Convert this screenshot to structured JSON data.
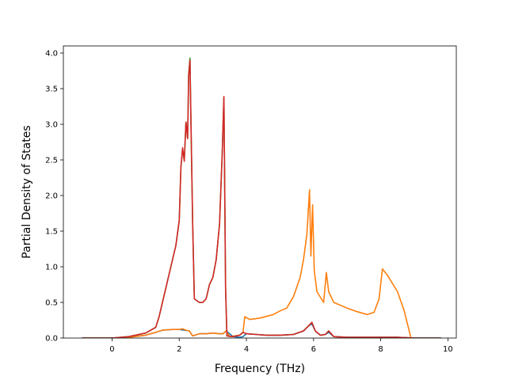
{
  "chart_data": {
    "type": "line",
    "title": "",
    "xlabel": "Frequency (THz)",
    "ylabel": "Partial Density of States",
    "xlim": [
      -1.45,
      10.25
    ],
    "ylim": [
      0.0,
      4.1
    ],
    "x_ticks": [
      0,
      2,
      4,
      6,
      8,
      10
    ],
    "x_tick_labels": [
      "0",
      "2",
      "4",
      "6",
      "8",
      "10"
    ],
    "y_ticks": [
      0.0,
      0.5,
      1.0,
      1.5,
      2.0,
      2.5,
      3.0,
      3.5,
      4.0
    ],
    "y_tick_labels": [
      "0.0",
      "0.5",
      "1.0",
      "1.5",
      "2.0",
      "2.5",
      "3.0",
      "3.5",
      "4.0"
    ],
    "grid": false,
    "legend": "none",
    "series": [
      {
        "color": "#1f77b4",
        "x": [
          -0.9,
          0.0,
          0.5,
          1.0,
          1.3,
          1.5,
          1.8,
          2.0,
          2.15,
          2.3,
          2.4,
          2.6,
          2.8,
          3.0,
          3.2,
          3.3,
          3.4,
          3.6,
          3.8,
          3.9,
          4.0,
          4.3,
          4.6,
          5.0,
          5.4,
          5.7,
          5.85,
          5.95,
          6.05,
          6.2,
          6.35,
          6.45,
          6.6,
          7.0,
          7.5,
          8.0,
          8.5,
          9.0,
          9.8
        ],
        "y": [
          0.0,
          0.0,
          0.01,
          0.04,
          0.08,
          0.11,
          0.12,
          0.12,
          0.11,
          0.1,
          0.03,
          0.06,
          0.06,
          0.07,
          0.06,
          0.06,
          0.1,
          0.02,
          0.01,
          0.02,
          0.06,
          0.05,
          0.04,
          0.04,
          0.05,
          0.1,
          0.17,
          0.2,
          0.1,
          0.04,
          0.05,
          0.08,
          0.02,
          0.01,
          0.01,
          0.01,
          0.01,
          0.0,
          0.0
        ]
      },
      {
        "color": "#ff7f0e",
        "x": [
          -0.9,
          0.0,
          0.5,
          1.0,
          1.3,
          1.5,
          1.8,
          2.0,
          2.1,
          2.2,
          2.3,
          2.4,
          2.6,
          2.8,
          3.0,
          3.2,
          3.3,
          3.4,
          3.5,
          3.8,
          3.9,
          3.95,
          4.1,
          4.4,
          4.8,
          5.0,
          5.2,
          5.4,
          5.6,
          5.7,
          5.8,
          5.88,
          5.92,
          5.97,
          6.02,
          6.1,
          6.3,
          6.38,
          6.45,
          6.6,
          7.0,
          7.3,
          7.6,
          7.8,
          7.95,
          8.05,
          8.2,
          8.5,
          8.7,
          8.9
        ],
        "y": [
          0.0,
          0.0,
          0.01,
          0.04,
          0.08,
          0.11,
          0.12,
          0.12,
          0.13,
          0.11,
          0.1,
          0.03,
          0.06,
          0.06,
          0.07,
          0.06,
          0.06,
          0.1,
          0.02,
          0.04,
          0.08,
          0.3,
          0.26,
          0.28,
          0.33,
          0.38,
          0.42,
          0.58,
          0.85,
          1.1,
          1.45,
          2.08,
          1.15,
          1.87,
          0.95,
          0.65,
          0.5,
          0.92,
          0.65,
          0.5,
          0.42,
          0.37,
          0.33,
          0.36,
          0.55,
          0.97,
          0.88,
          0.65,
          0.38,
          0.0
        ]
      },
      {
        "color": "#2ca02c",
        "x": [
          -0.9,
          0.0,
          0.5,
          1.0,
          1.3,
          1.4,
          1.6,
          1.7,
          1.9,
          2.0,
          2.05,
          2.1,
          2.15,
          2.2,
          2.25,
          2.28,
          2.32,
          2.35,
          2.4,
          2.45,
          2.6,
          2.7,
          2.8,
          2.9,
          3.0,
          3.1,
          3.2,
          3.28,
          3.33,
          3.38,
          3.42,
          3.6,
          3.8,
          3.9,
          4.0,
          4.3,
          4.6,
          5.0,
          5.4,
          5.7,
          5.85,
          5.95,
          6.05,
          6.2,
          6.35,
          6.45,
          6.6,
          7.0,
          7.5,
          8.0,
          8.5,
          9.0,
          9.8
        ],
        "y": [
          0.0,
          0.0,
          0.02,
          0.07,
          0.15,
          0.3,
          0.7,
          0.9,
          1.3,
          1.65,
          2.4,
          2.65,
          2.5,
          3.03,
          2.8,
          3.7,
          3.93,
          3.0,
          1.6,
          0.55,
          0.5,
          0.5,
          0.55,
          0.75,
          0.85,
          1.1,
          1.6,
          2.6,
          3.38,
          0.7,
          0.03,
          0.02,
          0.04,
          0.08,
          0.06,
          0.05,
          0.04,
          0.04,
          0.05,
          0.1,
          0.17,
          0.22,
          0.1,
          0.04,
          0.05,
          0.1,
          0.02,
          0.01,
          0.01,
          0.01,
          0.01,
          0.0,
          0.0
        ]
      },
      {
        "color": "#d62728",
        "x": [
          -0.9,
          0.0,
          0.5,
          1.0,
          1.3,
          1.4,
          1.6,
          1.7,
          1.9,
          2.0,
          2.05,
          2.1,
          2.15,
          2.2,
          2.25,
          2.28,
          2.32,
          2.35,
          2.4,
          2.45,
          2.6,
          2.7,
          2.8,
          2.9,
          3.0,
          3.1,
          3.2,
          3.28,
          3.33,
          3.38,
          3.42,
          3.6,
          3.8,
          3.9,
          4.0,
          4.3,
          4.6,
          5.0,
          5.4,
          5.7,
          5.85,
          5.95,
          6.05,
          6.2,
          6.35,
          6.45,
          6.6,
          7.0,
          7.5,
          8.0,
          8.5,
          9.0,
          9.8
        ],
        "y": [
          0.0,
          0.0,
          0.02,
          0.07,
          0.15,
          0.3,
          0.7,
          0.9,
          1.3,
          1.65,
          2.4,
          2.67,
          2.48,
          3.03,
          2.8,
          3.68,
          3.9,
          3.0,
          1.6,
          0.55,
          0.5,
          0.5,
          0.55,
          0.75,
          0.85,
          1.1,
          1.6,
          2.6,
          3.39,
          0.7,
          0.03,
          0.02,
          0.04,
          0.08,
          0.06,
          0.05,
          0.04,
          0.04,
          0.05,
          0.1,
          0.17,
          0.22,
          0.1,
          0.04,
          0.05,
          0.1,
          0.02,
          0.01,
          0.01,
          0.01,
          0.01,
          0.0,
          0.0
        ]
      }
    ]
  }
}
